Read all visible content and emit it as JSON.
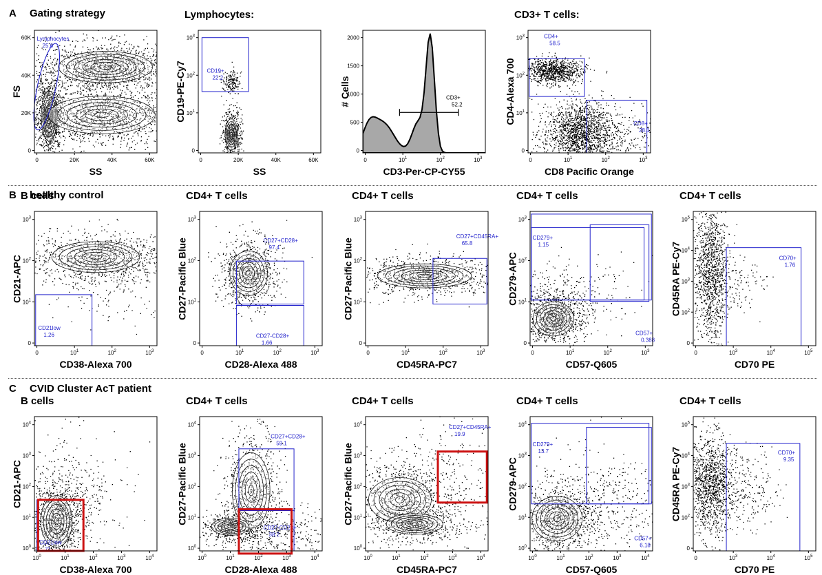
{
  "sections": [
    {
      "letter": "A",
      "title": "Gating strategy"
    },
    {
      "letter": "B",
      "title": "healthy control"
    },
    {
      "letter": "C",
      "title": "CVID Cluster AcT patient"
    }
  ],
  "chart_data": [
    {
      "type": "contour",
      "panel_title": "",
      "xlabel": "SS",
      "ylabel": "FS",
      "xticks": [
        "0",
        "20K",
        "40K",
        "60K"
      ],
      "yticks": [
        "0",
        "20K",
        "40K",
        "60K"
      ],
      "gates": [
        {
          "name": "Lymphocytes",
          "value": "25.6",
          "shape": "ellipse"
        }
      ]
    },
    {
      "type": "contour",
      "panel_title": "Lymphocytes:",
      "xlabel": "SS",
      "ylabel": "CD19-PE-Cy7",
      "xticks": [
        "0",
        "20K",
        "40K",
        "60K"
      ],
      "yticks": [
        "0",
        "10^1",
        "10^2",
        "10^3"
      ],
      "gates": [
        {
          "name": "CD19+",
          "value": "22.2"
        }
      ]
    },
    {
      "type": "histogram",
      "panel_title": "",
      "xlabel": "CD3-Per-CP-CY55",
      "ylabel": "# Cells",
      "xticks": [
        "0",
        "10^1",
        "10^2",
        "10^3"
      ],
      "yticks": [
        "0",
        "500",
        "1000",
        "1500",
        "2000"
      ],
      "peaks": [
        {
          "x": "0",
          "y": 480
        },
        {
          "x": "10^2",
          "y": 1930
        }
      ],
      "gates": [
        {
          "name": "CD3+",
          "value": "52.2"
        }
      ]
    },
    {
      "type": "scatter",
      "panel_title": "CD3+ T cells:",
      "xlabel": "CD8 Pacific Orange",
      "ylabel": "CD4-Alexa 700",
      "xticks": [
        "0",
        "10^1",
        "10^2",
        "10^3"
      ],
      "yticks": [
        "0",
        "10^1",
        "10^2",
        "10^3"
      ],
      "gates": [
        {
          "name": "CD4+",
          "value": "58.5"
        },
        {
          "name": "CD8+",
          "value": "28.1"
        }
      ]
    },
    {
      "type": "contour",
      "panel_title": "B cells",
      "xlabel": "CD38-Alexa 700",
      "ylabel": "CD21-APC",
      "xticks": [
        "0",
        "10^1",
        "10^2",
        "10^3"
      ],
      "yticks": [
        "0",
        "10^1",
        "10^2",
        "10^3"
      ],
      "gates": [
        {
          "name": "CD21low",
          "value": "1.26"
        }
      ]
    },
    {
      "type": "contour",
      "panel_title": "CD4+ T cells",
      "xlabel": "CD28-Alexa 488",
      "ylabel": "CD27-Pacific Blue",
      "xticks": [
        "0",
        "10^1",
        "10^2",
        "10^3"
      ],
      "yticks": [
        "0",
        "10^1",
        "10^2",
        "10^3"
      ],
      "gates": [
        {
          "name": "CD27+CD28+",
          "value": "97.4"
        },
        {
          "name": "CD27-CD28+",
          "value": "1.66"
        }
      ]
    },
    {
      "type": "contour",
      "panel_title": "CD4+ T cells",
      "xlabel": "CD45RA-PC7",
      "ylabel": "CD27-Pacific Blue",
      "xticks": [
        "0",
        "10^1",
        "10^2",
        "10^3"
      ],
      "yticks": [
        "0",
        "10^1",
        "10^2",
        "10^3"
      ],
      "gates": [
        {
          "name": "CD27+CD45RA+",
          "value": "65.8"
        }
      ]
    },
    {
      "type": "contour",
      "panel_title": "CD4+ T cells",
      "xlabel": "CD57-Q605",
      "ylabel": "CD279-APC",
      "xticks": [
        "0",
        "10^1",
        "10^2",
        "10^3"
      ],
      "yticks": [
        "0",
        "10^1",
        "10^2",
        "10^3"
      ],
      "gates": [
        {
          "name": "CD279+",
          "value": "1.15"
        },
        {
          "name": "CD57+",
          "value": "0.388"
        }
      ]
    },
    {
      "type": "scatter",
      "panel_title": "CD4+ T cells",
      "xlabel": "CD70 PE",
      "ylabel": "CD45RA PE-Cy7",
      "xticks": [
        "0",
        "10^3",
        "10^4",
        "10^5"
      ],
      "yticks": [
        "0",
        "10^2",
        "10^3",
        "10^4",
        "10^5"
      ],
      "gates": [
        {
          "name": "CD70+",
          "value": "1.76"
        }
      ]
    },
    {
      "type": "contour",
      "panel_title": "B cells",
      "xlabel": "CD38-Alexa 700",
      "ylabel": "CD21-APC",
      "xticks": [
        "10^0",
        "10^1",
        "10^2",
        "10^3",
        "10^4"
      ],
      "yticks": [
        "10^0",
        "10^1",
        "10^2",
        "10^3",
        "10^4"
      ],
      "gates": [
        {
          "name": "CD21low",
          "value": "71",
          "highlight": true
        }
      ]
    },
    {
      "type": "contour",
      "panel_title": "CD4+ T cells",
      "xlabel": "CD28-Alexa 488",
      "ylabel": "CD27-Pacific Blue",
      "xticks": [
        "10^0",
        "10^1",
        "10^2",
        "10^3",
        "10^4"
      ],
      "yticks": [
        "10^0",
        "10^1",
        "10^2",
        "10^3",
        "10^4"
      ],
      "gates": [
        {
          "name": "CD27+CD28+",
          "value": "59.1"
        },
        {
          "name": "CD27-CD28+",
          "value": "38.2",
          "highlight": true
        }
      ]
    },
    {
      "type": "contour",
      "panel_title": "CD4+ T cells",
      "xlabel": "CD45RA-PC7",
      "ylabel": "CD27-Pacific Blue",
      "xticks": [
        "10^0",
        "10^1",
        "10^2",
        "10^3",
        "10^4"
      ],
      "yticks": [
        "10^0",
        "10^1",
        "10^2",
        "10^3",
        "10^4"
      ],
      "gates": [
        {
          "name": "CD27+CD45RA+",
          "value": "19.9",
          "highlight": true
        }
      ]
    },
    {
      "type": "contour",
      "panel_title": "CD4+ T cells",
      "xlabel": "CD57-Q605",
      "ylabel": "CD279-APC",
      "xticks": [
        "10^0",
        "10^1",
        "10^2",
        "10^3",
        "10^4"
      ],
      "yticks": [
        "10^0",
        "10^1",
        "10^2",
        "10^3",
        "10^4"
      ],
      "gates": [
        {
          "name": "CD279+",
          "value": "13.7"
        },
        {
          "name": "CD57+",
          "value": "6.18"
        }
      ]
    },
    {
      "type": "scatter",
      "panel_title": "CD4+ T cells",
      "xlabel": "CD70 PE",
      "ylabel": "CD45RA PE-Cy7",
      "xticks": [
        "0",
        "10^3",
        "10^4",
        "10^5"
      ],
      "yticks": [
        "0",
        "10^2",
        "10^3",
        "10^4",
        "10^5"
      ],
      "gates": [
        {
          "name": "CD70+",
          "value": "9.35"
        }
      ]
    }
  ],
  "colors": {
    "gate": "#2222cc",
    "highlight": "#cc1111",
    "fill": "#a8a8a8",
    "ink": "#000000"
  }
}
